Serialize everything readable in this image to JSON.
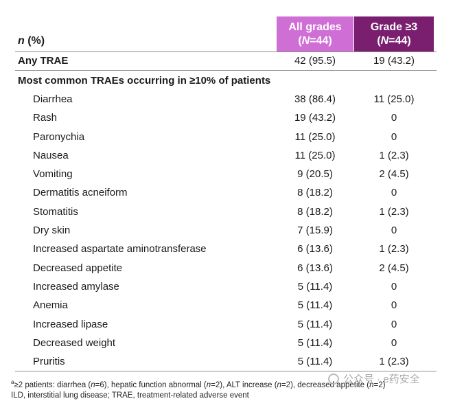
{
  "header": {
    "n_label": "n",
    "pct_label": " (%)",
    "all_line1": "All grades",
    "all_n": "N",
    "all_rest": "=44)",
    "g3_line1": "Grade ≥3",
    "g3_n": "N",
    "g3_rest": "=44)"
  },
  "any_trae": {
    "label": "Any TRAE",
    "all": "42 (95.5)",
    "g3": "19 (43.2)"
  },
  "section_title": "Most common TRAEs occurring in ≥10% of patients",
  "rows": [
    {
      "label": "Diarrhea",
      "all": "38 (86.4)",
      "g3": "11 (25.0)"
    },
    {
      "label": "Rash",
      "all": "19 (43.2)",
      "g3": "0"
    },
    {
      "label": "Paronychia",
      "all": "11 (25.0)",
      "g3": "0"
    },
    {
      "label": "Nausea",
      "all": "11 (25.0)",
      "g3": "1 (2.3)"
    },
    {
      "label": "Vomiting",
      "all": "9 (20.5)",
      "g3": "2 (4.5)"
    },
    {
      "label": "Dermatitis acneiform",
      "all": "8 (18.2)",
      "g3": "0"
    },
    {
      "label": "Stomatitis",
      "all": "8 (18.2)",
      "g3": "1 (2.3)"
    },
    {
      "label": "Dry skin",
      "all": "7 (15.9)",
      "g3": "0"
    },
    {
      "label": "Increased aspartate aminotransferase",
      "all": "6 (13.6)",
      "g3": "1 (2.3)"
    },
    {
      "label": "Decreased appetite",
      "all": "6 (13.6)",
      "g3": "2 (4.5)"
    },
    {
      "label": "Increased amylase",
      "all": "5 (11.4)",
      "g3": "0"
    },
    {
      "label": "Anemia",
      "all": "5 (11.4)",
      "g3": "0"
    },
    {
      "label": "Increased lipase",
      "all": "5 (11.4)",
      "g3": "0"
    },
    {
      "label": "Decreased weight",
      "all": "5 (11.4)",
      "g3": "0"
    },
    {
      "label": "Pruritis",
      "all": "5 (11.4)",
      "g3": "1 (2.3)"
    }
  ],
  "footnote": {
    "sup": "a",
    "line1_a": "≥2 patients: diarrhea (",
    "line1_b": "=6), hepatic function abnormal (",
    "line1_c": "=2), ALT increase (",
    "line1_d": "=2), decreased appetite (",
    "line1_e": "=2)",
    "n": "n",
    "line2": "ILD, interstitial lung disease; TRAE, treatment-related adverse event"
  },
  "watermark": {
    "text": "公众号 · e药安全"
  }
}
